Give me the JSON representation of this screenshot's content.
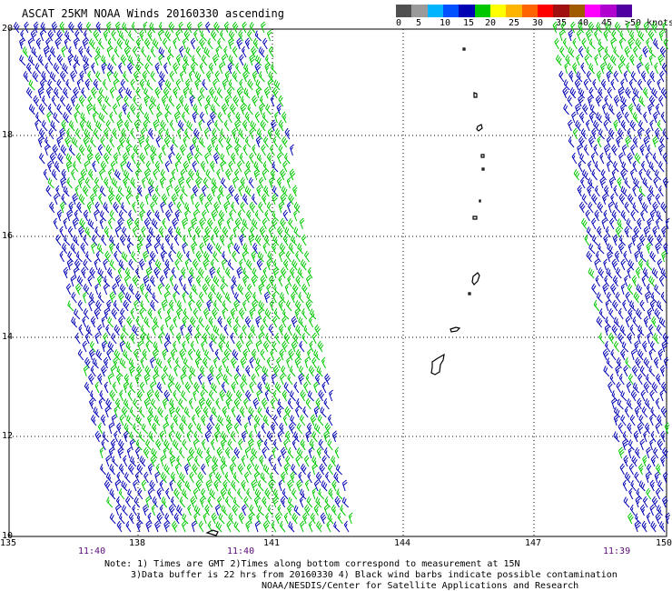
{
  "title": "ASCAT 25KM NOAA Winds 20160330 ascending",
  "legend": {
    "unit_label": "knots",
    "labels": [
      "0",
      "5",
      "10",
      "15",
      "20",
      "25",
      "30",
      "35",
      "40",
      "45",
      ">50 knots"
    ],
    "colors": [
      "#505050",
      "#9a9a9a",
      "#00b4ff",
      "#0050ff",
      "#0000b4",
      "#00c800",
      "#ffff00",
      "#ffb400",
      "#ff6400",
      "#ff0000",
      "#a01010",
      "#a05a00",
      "#ff00ff",
      "#b000d0",
      "#5000a0"
    ]
  },
  "axes": {
    "x_ticks": [
      "135",
      "138",
      "141",
      "144",
      "147",
      "150"
    ],
    "y_ticks": [
      "20",
      "18",
      "16",
      "14",
      "12",
      "10"
    ]
  },
  "times": [
    "11:40",
    "11:40",
    "11:39"
  ],
  "notes": [
    "Note: 1) Times are GMT 2)Times along bottom correspond to measurement at 15N",
    "3)Data buffer is 22 hrs from 20160330 4) Black wind barbs indicate possible contamination",
    "NOAA/NESDIS/Center for Satellite Applications and Research"
  ],
  "colors": {
    "barb_green": "#00c800",
    "barb_blue": "#0000b4",
    "grid": "#000000",
    "time_text": "#5a0a7a"
  }
}
